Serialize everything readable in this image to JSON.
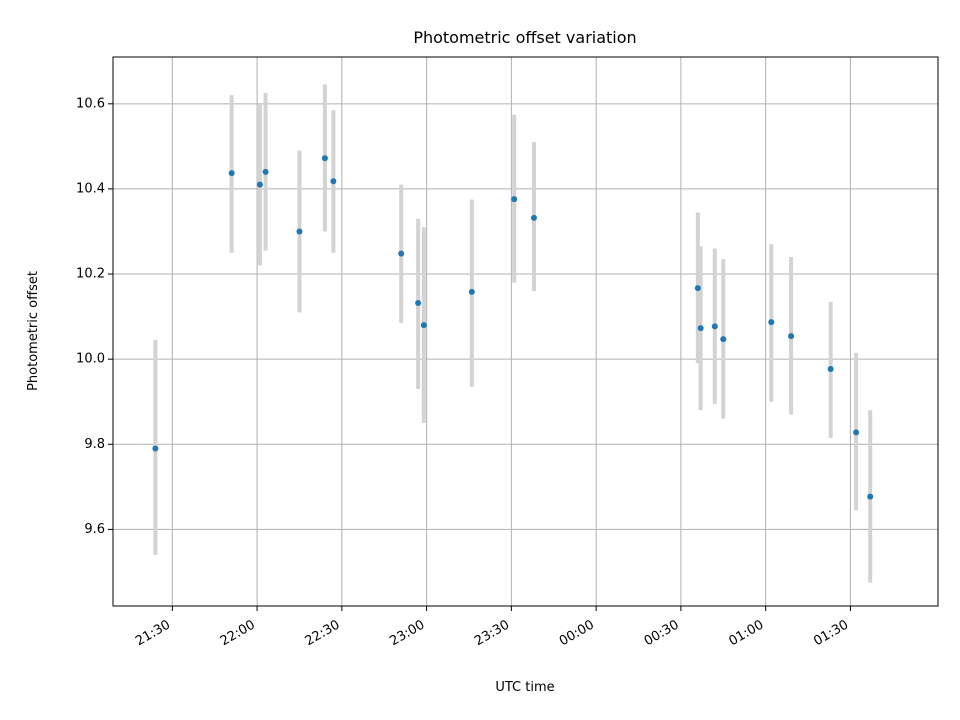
{
  "chart_data": {
    "type": "scatter",
    "title": "Photometric offset variation",
    "xlabel": "UTC time",
    "ylabel": "Photometric offset",
    "ylim": [
      9.42,
      10.71
    ],
    "xlim": [
      "21:09",
      "02:01"
    ],
    "grid": true,
    "x_ticks": [
      "21:30",
      "22:00",
      "22:30",
      "23:00",
      "23:30",
      "00:00",
      "00:30",
      "01:00",
      "01:30"
    ],
    "y_ticks": [
      9.6,
      9.8,
      10.0,
      10.2,
      10.4,
      10.6
    ],
    "points": [
      {
        "x": "21:24",
        "y": 9.79,
        "err_low": 9.54,
        "err_high": 10.045
      },
      {
        "x": "21:51",
        "y": 10.437,
        "err_low": 10.25,
        "err_high": 10.62
      },
      {
        "x": "22:01",
        "y": 10.41,
        "err_low": 10.22,
        "err_high": 10.6
      },
      {
        "x": "22:03",
        "y": 10.44,
        "err_low": 10.255,
        "err_high": 10.625
      },
      {
        "x": "22:15",
        "y": 10.3,
        "err_low": 10.11,
        "err_high": 10.49
      },
      {
        "x": "22:24",
        "y": 10.472,
        "err_low": 10.3,
        "err_high": 10.645
      },
      {
        "x": "22:27",
        "y": 10.418,
        "err_low": 10.25,
        "err_high": 10.585
      },
      {
        "x": "22:51",
        "y": 10.248,
        "err_low": 10.085,
        "err_high": 10.41
      },
      {
        "x": "22:57",
        "y": 10.132,
        "err_low": 9.93,
        "err_high": 10.33
      },
      {
        "x": "22:59",
        "y": 10.08,
        "err_low": 9.85,
        "err_high": 10.31
      },
      {
        "x": "23:16",
        "y": 10.158,
        "err_low": 9.935,
        "err_high": 10.375
      },
      {
        "x": "23:31",
        "y": 10.376,
        "err_low": 10.18,
        "err_high": 10.575
      },
      {
        "x": "23:38",
        "y": 10.332,
        "err_low": 10.16,
        "err_high": 10.51
      },
      {
        "x": "00:36",
        "y": 10.167,
        "err_low": 9.99,
        "err_high": 10.345
      },
      {
        "x": "00:37",
        "y": 10.073,
        "err_low": 9.88,
        "err_high": 10.265
      },
      {
        "x": "00:42",
        "y": 10.077,
        "err_low": 9.895,
        "err_high": 10.26
      },
      {
        "x": "00:45",
        "y": 10.047,
        "err_low": 9.86,
        "err_high": 10.235
      },
      {
        "x": "01:02",
        "y": 10.087,
        "err_low": 9.9,
        "err_high": 10.27
      },
      {
        "x": "01:09",
        "y": 10.054,
        "err_low": 9.87,
        "err_high": 10.24
      },
      {
        "x": "01:23",
        "y": 9.977,
        "err_low": 9.815,
        "err_high": 10.135
      },
      {
        "x": "01:32",
        "y": 9.828,
        "err_low": 9.645,
        "err_high": 10.015
      },
      {
        "x": "01:37",
        "y": 9.677,
        "err_low": 9.475,
        "err_high": 9.88
      }
    ],
    "marker_color": "#1f77b4",
    "errorbar_color": "#d3d3d3",
    "grid_color": "#b0b0b0"
  }
}
